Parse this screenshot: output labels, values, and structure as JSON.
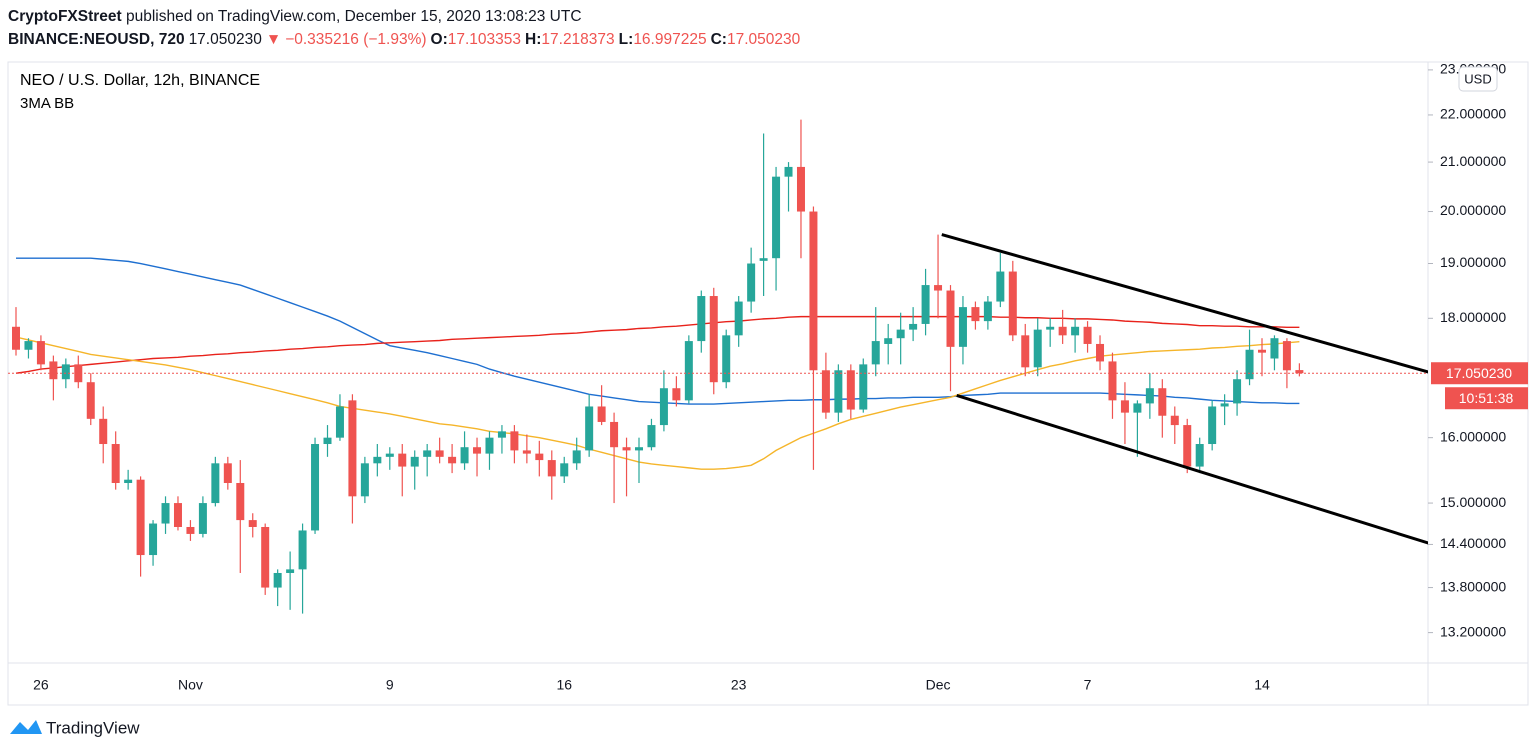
{
  "header": {
    "author": "CryptoFXStreet",
    "published": "published on TradingView.com, December 15, 2020 13:08:23 UTC",
    "symbol": "BINANCE:NEOUSD, 720",
    "direction": "▼",
    "change": "−0.335216 (−1.93%)",
    "ohlc_labels": [
      "O:",
      "H:",
      "L:",
      "C:"
    ]
  },
  "footer": {
    "brand": "TradingView"
  },
  "chart_data": {
    "type": "candlestick",
    "title": "NEO / U.S. Dollar, 12h, BINANCE",
    "indicator": "3MA BB",
    "currency": "USD",
    "log_scale": true,
    "grid": false,
    "up_color": "#26a69a",
    "down_color": "#ef5350",
    "categories": [
      null,
      null,
      "26",
      null,
      null,
      null,
      null,
      null,
      null,
      null,
      null,
      null,
      null,
      null,
      "Nov",
      null,
      null,
      null,
      null,
      null,
      null,
      null,
      null,
      null,
      null,
      null,
      null,
      null,
      null,
      null,
      "9",
      null,
      null,
      null,
      null,
      null,
      null,
      null,
      null,
      null,
      null,
      null,
      null,
      null,
      "16",
      null,
      null,
      null,
      null,
      null,
      null,
      null,
      null,
      null,
      null,
      null,
      null,
      null,
      "23",
      null,
      null,
      null,
      null,
      null,
      null,
      null,
      null,
      null,
      null,
      null,
      null,
      null,
      null,
      null,
      "Dec",
      null,
      null,
      null,
      null,
      null,
      null,
      null,
      null,
      null,
      null,
      null,
      "7",
      null,
      null,
      null,
      null,
      null,
      null,
      null,
      null,
      null,
      null,
      null,
      null,
      null,
      "14",
      null,
      null,
      null
    ],
    "open": [
      17.85,
      17.45,
      17.6,
      17.25,
      16.95,
      17.2,
      16.9,
      16.3,
      15.9,
      15.3,
      15.35,
      14.25,
      14.7,
      15.0,
      14.65,
      14.55,
      15.0,
      15.6,
      15.3,
      14.75,
      14.65,
      13.8,
      14.0,
      14.05,
      14.6,
      15.9,
      16.0,
      16.6,
      15.1,
      15.6,
      15.7,
      15.75,
      15.55,
      15.7,
      15.8,
      15.7,
      15.6,
      15.85,
      15.75,
      16.0,
      16.1,
      15.8,
      15.75,
      15.65,
      15.4,
      15.6,
      15.8,
      16.5,
      16.25,
      15.85,
      15.8,
      15.85,
      16.2,
      16.8,
      16.6,
      17.6,
      18.4,
      16.9,
      17.7,
      18.3,
      19.05,
      19.1,
      20.7,
      20.9,
      20.0,
      17.1,
      16.4,
      17.1,
      16.45,
      17.2,
      17.55,
      17.65,
      17.8,
      17.9,
      18.6,
      18.5,
      17.5,
      18.2,
      17.95,
      18.3,
      18.85,
      17.7,
      17.15,
      17.8,
      17.85,
      17.7,
      17.85,
      17.55,
      17.25,
      16.6,
      16.4,
      16.55,
      16.8,
      16.35,
      16.2,
      15.55,
      15.9,
      16.5,
      16.55,
      16.95,
      17.45,
      17.3,
      17.6,
      17.103353
    ],
    "high": [
      18.2,
      17.65,
      17.7,
      17.35,
      17.3,
      17.35,
      17.05,
      16.5,
      16.1,
      15.5,
      15.4,
      14.75,
      15.1,
      15.1,
      14.75,
      15.1,
      15.7,
      15.7,
      15.65,
      14.85,
      14.7,
      14.05,
      14.3,
      14.7,
      16.0,
      16.2,
      16.7,
      16.7,
      15.7,
      15.9,
      15.85,
      15.9,
      15.8,
      15.9,
      16.0,
      15.9,
      16.1,
      16.0,
      16.1,
      16.2,
      16.2,
      16.05,
      15.95,
      15.8,
      15.7,
      16.0,
      16.7,
      16.85,
      16.4,
      16.0,
      16.0,
      16.3,
      17.1,
      17.0,
      17.7,
      18.5,
      18.55,
      17.8,
      18.4,
      19.3,
      21.6,
      20.9,
      21.0,
      21.9,
      20.1,
      17.4,
      17.2,
      17.2,
      17.3,
      18.2,
      17.9,
      18.1,
      18.2,
      18.9,
      19.55,
      18.6,
      18.4,
      18.3,
      18.4,
      19.2,
      19.05,
      17.9,
      18.0,
      18.0,
      18.15,
      18.0,
      17.95,
      17.7,
      17.4,
      16.9,
      16.6,
      17.05,
      16.95,
      16.5,
      16.3,
      16.0,
      16.6,
      16.7,
      17.1,
      17.8,
      17.65,
      17.7,
      17.65,
      17.218373
    ],
    "low": [
      17.35,
      17.3,
      17.1,
      16.6,
      16.8,
      16.8,
      16.2,
      15.6,
      15.2,
      15.2,
      13.95,
      14.1,
      14.55,
      14.6,
      14.45,
      14.5,
      14.95,
      15.2,
      14.0,
      14.5,
      13.7,
      13.55,
      13.5,
      13.45,
      14.55,
      15.7,
      15.95,
      14.7,
      15.0,
      15.4,
      15.5,
      15.1,
      15.2,
      15.4,
      15.6,
      15.45,
      15.5,
      15.4,
      15.5,
      15.75,
      15.6,
      15.6,
      15.4,
      15.05,
      15.3,
      15.5,
      15.7,
      16.2,
      15.0,
      15.1,
      15.3,
      15.8,
      16.1,
      16.5,
      16.55,
      17.4,
      16.7,
      16.8,
      17.5,
      18.1,
      18.4,
      18.5,
      20.0,
      19.1,
      15.5,
      16.3,
      16.25,
      16.3,
      16.4,
      17.0,
      17.2,
      17.2,
      17.6,
      17.7,
      18.0,
      16.75,
      17.2,
      17.8,
      17.8,
      18.2,
      17.6,
      17.0,
      17.0,
      17.5,
      17.55,
      17.4,
      17.4,
      17.1,
      16.3,
      15.9,
      15.7,
      16.3,
      16.0,
      15.9,
      15.45,
      15.45,
      15.8,
      16.2,
      16.35,
      16.85,
      17.0,
      17.1,
      16.8,
      16.997225
    ],
    "close": [
      17.45,
      17.6,
      17.2,
      16.95,
      17.2,
      16.9,
      16.3,
      15.9,
      15.3,
      15.35,
      14.25,
      14.7,
      15.0,
      14.65,
      14.55,
      15.0,
      15.6,
      15.3,
      14.75,
      14.65,
      13.8,
      14.0,
      14.05,
      14.6,
      15.9,
      16.0,
      16.5,
      15.1,
      15.6,
      15.7,
      15.75,
      15.55,
      15.7,
      15.8,
      15.7,
      15.6,
      15.85,
      15.75,
      16.0,
      16.1,
      15.8,
      15.75,
      15.65,
      15.4,
      15.6,
      15.8,
      16.5,
      16.25,
      15.85,
      15.8,
      15.85,
      16.2,
      16.8,
      16.6,
      17.6,
      18.4,
      16.9,
      17.7,
      18.3,
      19.0,
      19.1,
      20.7,
      20.9,
      20.0,
      17.1,
      16.4,
      17.1,
      16.45,
      17.2,
      17.6,
      17.65,
      17.8,
      17.9,
      18.6,
      18.5,
      17.5,
      18.2,
      17.95,
      18.3,
      18.85,
      17.7,
      17.15,
      17.8,
      17.85,
      17.7,
      17.85,
      17.55,
      17.25,
      16.6,
      16.4,
      16.55,
      16.8,
      16.35,
      16.2,
      15.55,
      15.9,
      16.5,
      16.55,
      16.95,
      17.45,
      17.4,
      17.65,
      17.1,
      17.05023
    ],
    "lines": [
      {
        "color": "#1e6fd0",
        "values": [
          19.1,
          19.1,
          19.1,
          19.1,
          19.1,
          19.1,
          19.1,
          19.08,
          19.06,
          19.04,
          19.0,
          18.95,
          18.9,
          18.85,
          18.8,
          18.75,
          18.7,
          18.65,
          18.6,
          18.52,
          18.44,
          18.36,
          18.28,
          18.2,
          18.12,
          18.04,
          17.95,
          17.84,
          17.73,
          17.62,
          17.52,
          17.48,
          17.44,
          17.4,
          17.35,
          17.3,
          17.25,
          17.2,
          17.12,
          17.06,
          17.0,
          16.95,
          16.9,
          16.85,
          16.8,
          16.75,
          16.7,
          16.67,
          16.64,
          16.61,
          16.58,
          16.57,
          16.56,
          16.55,
          16.54,
          16.54,
          16.54,
          16.55,
          16.56,
          16.57,
          16.58,
          16.59,
          16.6,
          16.6,
          16.61,
          16.61,
          16.62,
          16.62,
          16.63,
          16.63,
          16.64,
          16.64,
          16.65,
          16.65,
          16.65,
          16.66,
          16.68,
          16.69,
          16.7,
          16.72,
          16.72,
          16.72,
          16.72,
          16.72,
          16.72,
          16.72,
          16.72,
          16.72,
          16.71,
          16.7,
          16.69,
          16.68,
          16.67,
          16.65,
          16.64,
          16.62,
          16.6,
          16.59,
          16.58,
          16.57,
          16.56,
          16.56,
          16.55,
          16.55
        ]
      },
      {
        "color": "#e8221b",
        "values": [
          17.05,
          17.08,
          17.12,
          17.14,
          17.16,
          17.18,
          17.2,
          17.22,
          17.24,
          17.26,
          17.28,
          17.3,
          17.31,
          17.32,
          17.34,
          17.35,
          17.37,
          17.38,
          17.4,
          17.41,
          17.43,
          17.44,
          17.46,
          17.47,
          17.49,
          17.5,
          17.52,
          17.53,
          17.54,
          17.56,
          17.57,
          17.58,
          17.59,
          17.6,
          17.61,
          17.63,
          17.64,
          17.65,
          17.66,
          17.67,
          17.68,
          17.69,
          17.7,
          17.72,
          17.73,
          17.74,
          17.76,
          17.78,
          17.79,
          17.8,
          17.82,
          17.83,
          17.85,
          17.86,
          17.88,
          17.9,
          17.92,
          17.94,
          17.95,
          17.97,
          17.99,
          18.0,
          18.02,
          18.03,
          18.03,
          18.03,
          18.03,
          18.03,
          18.03,
          18.03,
          18.03,
          18.03,
          18.03,
          18.03,
          18.03,
          18.03,
          18.03,
          18.03,
          18.03,
          18.02,
          18.02,
          18.01,
          18.01,
          18.0,
          18.0,
          17.99,
          17.99,
          17.98,
          17.97,
          17.95,
          17.94,
          17.93,
          17.91,
          17.9,
          17.89,
          17.87,
          17.87,
          17.86,
          17.86,
          17.85,
          17.85,
          17.85,
          17.84,
          17.84
        ]
      },
      {
        "color": "#f5b52a",
        "values": [
          17.67,
          17.62,
          17.57,
          17.52,
          17.47,
          17.42,
          17.37,
          17.34,
          17.31,
          17.28,
          17.25,
          17.22,
          17.19,
          17.15,
          17.11,
          17.06,
          17.01,
          16.96,
          16.91,
          16.86,
          16.81,
          16.76,
          16.71,
          16.66,
          16.61,
          16.56,
          16.5,
          16.47,
          16.44,
          16.41,
          16.38,
          16.34,
          16.3,
          16.26,
          16.22,
          16.2,
          16.17,
          16.14,
          16.1,
          16.08,
          16.06,
          16.03,
          16.0,
          15.96,
          15.92,
          15.88,
          15.82,
          15.77,
          15.72,
          15.67,
          15.62,
          15.59,
          15.57,
          15.55,
          15.53,
          15.51,
          15.51,
          15.52,
          15.54,
          15.57,
          15.67,
          15.8,
          15.9,
          16.0,
          16.07,
          16.14,
          16.22,
          16.29,
          16.34,
          16.39,
          16.44,
          16.49,
          16.53,
          16.57,
          16.61,
          16.65,
          16.72,
          16.79,
          16.86,
          16.93,
          16.99,
          17.05,
          17.11,
          17.17,
          17.21,
          17.26,
          17.3,
          17.34,
          17.36,
          17.38,
          17.4,
          17.42,
          17.43,
          17.44,
          17.45,
          17.46,
          17.48,
          17.49,
          17.51,
          17.52,
          17.54,
          17.55,
          17.57,
          17.59
        ]
      }
    ],
    "trendlines": [
      {
        "color": "#000000",
        "x": [
          74.3,
          113.7
        ],
        "y": [
          19.55,
          17.05
        ]
      },
      {
        "color": "#000000",
        "x": [
          75.5,
          113.7
        ],
        "y": [
          16.68,
          14.4
        ]
      }
    ],
    "last_price": {
      "value": 17.05023,
      "label": "17.050230"
    },
    "countdown": "10:51:38",
    "ylim": [
      12.81,
      23.18
    ],
    "yticks": [
      {
        "value": 23,
        "label": "23.000000"
      },
      {
        "value": 22,
        "label": "22.000000"
      },
      {
        "value": 21,
        "label": "21.000000"
      },
      {
        "value": 20,
        "label": "20.000000"
      },
      {
        "value": 19,
        "label": "19.000000"
      },
      {
        "value": 18,
        "label": "18.000000"
      },
      {
        "value": 16,
        "label": "16.000000"
      },
      {
        "value": 15,
        "label": "15.000000"
      },
      {
        "value": 14.4,
        "label": "14.400000"
      },
      {
        "value": 13.8,
        "label": "13.800000"
      },
      {
        "value": 13.2,
        "label": "13.200000"
      }
    ]
  }
}
